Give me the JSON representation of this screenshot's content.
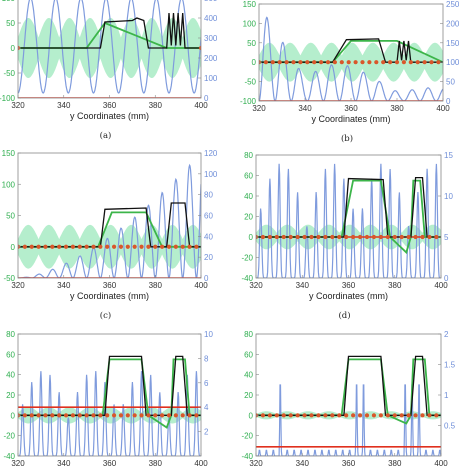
{
  "chart_data": [
    {
      "id": "a",
      "type": "line",
      "caption": "(a)",
      "xlabel": "y Coordinates (mm)",
      "xlim": [
        320,
        400
      ],
      "xticks": [
        "320",
        "340",
        "360",
        "380",
        "400"
      ],
      "ylim_left": [
        -100,
        100
      ],
      "yticks_left": [
        "100",
        "50",
        "0",
        "-50",
        "-100"
      ],
      "ylim_right": [
        0,
        500
      ],
      "yticks_right": [
        "500",
        "400",
        "300",
        "200",
        "100",
        "0"
      ],
      "band_amp": 60,
      "blue_shape": "deep",
      "blue_amp": 500,
      "blue_period": 11,
      "blue_floor": 0.05,
      "red_level": 0,
      "markers": "ends",
      "series_green": {
        "x": [
          320,
          350,
          358,
          385,
          400
        ],
        "y": [
          0,
          0,
          50,
          0,
          0
        ]
      },
      "series_black": {
        "x": [
          320,
          356,
          358,
          370,
          372,
          375,
          377,
          385,
          386,
          387,
          388,
          389,
          390,
          391,
          392,
          393,
          400
        ],
        "y": [
          0,
          0,
          52,
          55,
          60,
          55,
          0,
          0,
          70,
          5,
          70,
          5,
          70,
          5,
          70,
          0,
          0
        ]
      }
    },
    {
      "id": "b",
      "type": "line",
      "caption": "(b)",
      "xlabel": "y Coordinates (mm)",
      "xlim": [
        320,
        400
      ],
      "xticks": [
        "320",
        "340",
        "360",
        "380",
        "400"
      ],
      "ylim_left": [
        -100,
        150
      ],
      "yticks_left": [
        "150",
        "100",
        "50",
        "0",
        "-50",
        "-100"
      ],
      "ylim_right": [
        0,
        250
      ],
      "yticks_right": [
        "250",
        "200",
        "150",
        "100",
        "50",
        "0"
      ],
      "band_amp": 50,
      "blue_shape": "decay",
      "blue_amp": 240,
      "blue_period": 7,
      "blue_floor": 0,
      "red_level": 0,
      "markers": "all",
      "series_green": {
        "x": [
          320,
          352,
          360,
          380,
          400
        ],
        "y": [
          0,
          0,
          55,
          55,
          0
        ]
      },
      "series_black": {
        "x": [
          320,
          352,
          358,
          372,
          375,
          380,
          381,
          382,
          383,
          384,
          385,
          386,
          400
        ],
        "y": [
          0,
          0,
          58,
          60,
          0,
          0,
          55,
          5,
          55,
          5,
          55,
          0,
          0
        ]
      }
    },
    {
      "id": "c",
      "type": "line",
      "caption": "(c)",
      "xlabel": "y Coordinates (mm)",
      "xlim": [
        320,
        400
      ],
      "xticks": [
        "320",
        "340",
        "360",
        "380",
        "400"
      ],
      "ylim_left": [
        -50,
        150
      ],
      "yticks_left": [
        "150",
        "100",
        "50",
        "0",
        "-50"
      ],
      "ylim_right": [
        0,
        120
      ],
      "yticks_right": [
        "120",
        "100",
        "80",
        "60",
        "40",
        "20",
        "0"
      ],
      "band_amp": 35,
      "blue_shape": "grow",
      "blue_amp": 120,
      "blue_period": 6,
      "blue_floor": 0,
      "red_level": 0,
      "markers": "all",
      "series_green": {
        "x": [
          320,
          355,
          361,
          376,
          383,
          400
        ],
        "y": [
          0,
          0,
          55,
          55,
          0,
          0
        ]
      },
      "series_black": {
        "x": [
          320,
          356,
          358,
          376,
          378,
          385,
          387,
          393,
          395,
          400
        ],
        "y": [
          0,
          0,
          60,
          62,
          0,
          0,
          70,
          70,
          0,
          0
        ]
      }
    },
    {
      "id": "d",
      "type": "line",
      "caption": "(d)",
      "xlabel": "y Coordinates (mm)",
      "xlim": [
        320,
        400
      ],
      "xticks": [
        "320",
        "340",
        "360",
        "380",
        "400"
      ],
      "ylim_left": [
        -40,
        80
      ],
      "yticks_left": [
        "80",
        "60",
        "40",
        "20",
        "0",
        "-20",
        "-40"
      ],
      "ylim_right": [
        0,
        15
      ],
      "yticks_right": [
        "15",
        "10",
        "5",
        "0"
      ],
      "band_amp": 12,
      "blue_shape": "comb",
      "blue_amp": 14,
      "blue_period": 4,
      "blue_floor": 0,
      "red_level": 5,
      "markers": "all",
      "series_green": {
        "x": [
          320,
          357,
          362,
          374,
          378,
          385,
          387,
          388,
          391,
          393,
          400
        ],
        "y": [
          0,
          0,
          55,
          55,
          0,
          -15,
          0,
          55,
          55,
          0,
          0
        ]
      },
      "series_black": {
        "x": [
          320,
          358,
          360,
          375,
          377,
          387,
          389,
          392,
          394,
          400
        ],
        "y": [
          0,
          0,
          57,
          56,
          0,
          0,
          58,
          58,
          0,
          0
        ]
      }
    },
    {
      "id": "e",
      "type": "line",
      "caption": "",
      "xlabel": "",
      "xlim": [
        320,
        400
      ],
      "xticks": [
        "320",
        "340",
        "360",
        "380",
        "400"
      ],
      "ylim_left": [
        -40,
        80
      ],
      "yticks_left": [
        "80",
        "60",
        "40",
        "20",
        "0",
        "-20",
        "-40"
      ],
      "ylim_right": [
        0,
        10
      ],
      "yticks_right": [
        "10",
        "8",
        "6",
        "4",
        "2"
      ],
      "band_amp": 8,
      "blue_shape": "comb",
      "blue_amp": 7,
      "blue_period": 4,
      "blue_floor": 0,
      "red_level": 4,
      "markers": "all",
      "series_green": {
        "x": [
          320,
          357,
          360,
          374,
          377,
          385,
          387,
          388,
          393,
          395,
          400
        ],
        "y": [
          0,
          0,
          55,
          55,
          0,
          -12,
          0,
          55,
          55,
          0,
          0
        ]
      },
      "series_black": {
        "x": [
          320,
          358,
          360,
          374,
          376,
          387,
          389,
          392,
          394,
          400
        ],
        "y": [
          0,
          0,
          58,
          58,
          0,
          0,
          58,
          58,
          0,
          0
        ]
      }
    },
    {
      "id": "f",
      "type": "line",
      "caption": "",
      "xlabel": "",
      "xlim": [
        320,
        400
      ],
      "xticks": [
        "320",
        "340",
        "360",
        "380",
        "400"
      ],
      "ylim_left": [
        -40,
        80
      ],
      "yticks_left": [
        "80",
        "60",
        "40",
        "20",
        "0",
        "-20",
        "-40"
      ],
      "ylim_right": [
        0,
        2
      ],
      "yticks_right": [
        "2",
        "1.5",
        "1",
        "0.5"
      ],
      "band_amp": 4,
      "blue_shape": "sparse",
      "blue_amp": 1.3,
      "blue_period": 3,
      "blue_floor": 0,
      "red_level": 0.15,
      "markers": "all",
      "series_green": {
        "x": [
          320,
          357,
          360,
          374,
          377,
          385,
          387,
          388,
          393,
          395,
          400
        ],
        "y": [
          0,
          0,
          55,
          55,
          0,
          -8,
          0,
          55,
          55,
          0,
          0
        ]
      },
      "series_black": {
        "x": [
          320,
          358,
          360,
          374,
          376,
          387,
          389,
          392,
          394,
          400
        ],
        "y": [
          0,
          0,
          58,
          58,
          0,
          0,
          58,
          58,
          0,
          0
        ]
      }
    }
  ]
}
